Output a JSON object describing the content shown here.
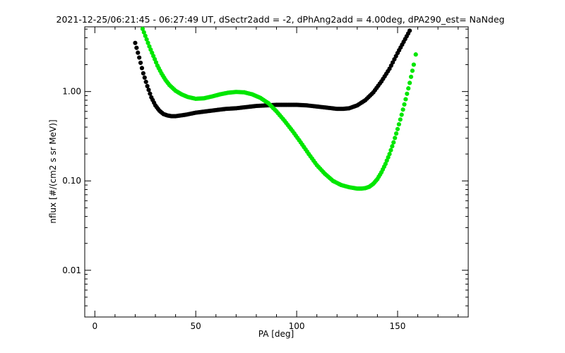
{
  "chart_data": {
    "type": "scatter",
    "title": "2021-12-25/06:21:45 - 06:27:49 UT, dSectr2add = -2, dPhAng2add = 4.00deg, dPA290_est=   NaNdeg",
    "xlabel": "PA [deg]",
    "ylabel": "nflux [#/(cm2 s sr MeV)]",
    "xlim": [
      -5,
      185
    ],
    "ylim": [
      0.003,
      5.3
    ],
    "yscale": "log",
    "xticks": [
      0,
      50,
      100,
      150
    ],
    "xtick_labels": [
      "0",
      "50",
      "100",
      "150"
    ],
    "yticks": [
      0.01,
      0.1,
      1.0
    ],
    "ytick_labels": [
      "0.01",
      "0.10",
      "1.00"
    ],
    "grid": false,
    "series": [
      {
        "color": "#000000",
        "x": [
          20,
          22,
          24,
          26,
          28,
          30,
          32,
          34,
          36,
          38,
          40,
          45,
          50,
          55,
          60,
          65,
          70,
          75,
          80,
          85,
          90,
          95,
          100,
          105,
          110,
          115,
          120,
          123,
          126,
          130,
          134,
          138,
          142,
          146,
          150,
          153,
          156,
          157
        ],
        "y": [
          3.5,
          2.4,
          1.6,
          1.15,
          0.86,
          0.7,
          0.61,
          0.56,
          0.54,
          0.53,
          0.53,
          0.55,
          0.58,
          0.6,
          0.62,
          0.64,
          0.65,
          0.67,
          0.69,
          0.7,
          0.71,
          0.71,
          0.71,
          0.7,
          0.68,
          0.66,
          0.64,
          0.64,
          0.65,
          0.7,
          0.8,
          0.98,
          1.3,
          1.8,
          2.7,
          3.6,
          4.8,
          5.3
        ]
      },
      {
        "color": "#00e600",
        "x": [
          23,
          25,
          27,
          29,
          31,
          33,
          35,
          37,
          40,
          43,
          46,
          50,
          54,
          58,
          62,
          66,
          70,
          74,
          78,
          82,
          86,
          90,
          94,
          98,
          102,
          106,
          110,
          114,
          118,
          122,
          126,
          130,
          132,
          134,
          136,
          138,
          140,
          142,
          144,
          146,
          148,
          150,
          152,
          154,
          156,
          158,
          159
        ],
        "y": [
          5.5,
          4.2,
          3.2,
          2.5,
          1.95,
          1.6,
          1.35,
          1.18,
          1.02,
          0.93,
          0.87,
          0.83,
          0.84,
          0.88,
          0.93,
          0.97,
          0.99,
          0.98,
          0.93,
          0.85,
          0.74,
          0.6,
          0.47,
          0.36,
          0.27,
          0.2,
          0.15,
          0.12,
          0.1,
          0.09,
          0.085,
          0.082,
          0.082,
          0.083,
          0.086,
          0.093,
          0.105,
          0.125,
          0.155,
          0.2,
          0.27,
          0.38,
          0.55,
          0.82,
          1.25,
          2.0,
          2.6
        ]
      }
    ]
  }
}
